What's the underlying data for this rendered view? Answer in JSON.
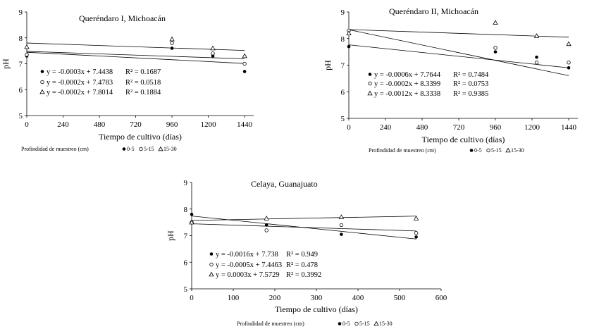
{
  "chart_data": [
    {
      "type": "scatter",
      "title": "Queréndaro I, Michoacán",
      "xlabel": "Tiempo de cultivo (días)",
      "ylabel": "pH",
      "xlim": [
        0,
        1500
      ],
      "ylim": [
        5,
        9
      ],
      "xticks": [
        0,
        240,
        480,
        720,
        960,
        1200,
        1440
      ],
      "yticks": [
        5,
        6,
        7,
        8,
        9
      ],
      "legend_title": "Profindidad de muestreo (cm)",
      "series": [
        {
          "name": "0-5",
          "marker": "filled-circle",
          "x": [
            0,
            960,
            1230,
            1440
          ],
          "y": [
            7.3,
            7.6,
            7.3,
            6.7
          ],
          "fit": {
            "slope": -0.0003,
            "intercept": 7.4438
          },
          "equation": "y = -0.0003x + 7.4438",
          "r2": "R² = 0.1687"
        },
        {
          "name": "5-15",
          "marker": "open-circle",
          "x": [
            0,
            960,
            1230,
            1440
          ],
          "y": [
            7.35,
            7.8,
            7.4,
            7.0
          ],
          "fit": {
            "slope": -0.0002,
            "intercept": 7.4783
          },
          "equation": "y = -0.0002x + 7.4783",
          "r2": "R² = 0.0518"
        },
        {
          "name": "15-30",
          "marker": "open-triangle",
          "x": [
            0,
            960,
            1230,
            1440
          ],
          "y": [
            7.65,
            7.95,
            7.6,
            7.3
          ],
          "fit": {
            "slope": -0.0002,
            "intercept": 7.8014
          },
          "equation": "y = -0.0002x + 7.8014",
          "r2": "R² = 0.1884"
        }
      ]
    },
    {
      "type": "scatter",
      "title": "Queréndaro II, Michoacán",
      "xlabel": "Tiempo de cultivo (días)",
      "ylabel": "pH",
      "xlim": [
        0,
        1500
      ],
      "ylim": [
        5,
        9
      ],
      "xticks": [
        0,
        240,
        480,
        720,
        960,
        1200,
        1440
      ],
      "yticks": [
        5,
        6,
        7,
        8,
        9
      ],
      "legend_title": "Profindidad de muestreo (cm)",
      "series": [
        {
          "name": "0-5",
          "marker": "filled-circle",
          "x": [
            0,
            960,
            1230,
            1440
          ],
          "y": [
            7.7,
            7.5,
            7.3,
            6.9
          ],
          "fit": {
            "slope": -0.0006,
            "intercept": 7.7644
          },
          "equation": "y = -0.0006x + 7.7644",
          "r2": "R² = 0.7484"
        },
        {
          "name": "5-15",
          "marker": "open-circle",
          "x": [
            0,
            960,
            1230,
            1440
          ],
          "y": [
            8.3,
            7.65,
            7.1,
            7.1
          ],
          "fit": {
            "slope": -0.0002,
            "intercept": 8.3399
          },
          "equation": "y = -0.0002x + 8.3399",
          "r2": "R² = 0.0753"
        },
        {
          "name": "15-30",
          "marker": "open-triangle",
          "x": [
            0,
            960,
            1230,
            1440
          ],
          "y": [
            8.2,
            8.6,
            8.1,
            7.8
          ],
          "fit": {
            "slope": -0.0012,
            "intercept": 8.3338
          },
          "equation": "y = -0.0012x + 8.3338",
          "r2": "R² = 0.9385"
        }
      ]
    },
    {
      "type": "scatter",
      "title": "Celaya, Guanajuato",
      "xlabel": "Tiempo de cultivo (días)",
      "ylabel": "pH",
      "xlim": [
        0,
        600
      ],
      "ylim": [
        5,
        9
      ],
      "xticks": [
        0,
        100,
        200,
        300,
        400,
        500,
        600
      ],
      "yticks": [
        5,
        6,
        7,
        8,
        9
      ],
      "legend_title": "Profindidad de muestreo (cm)",
      "series": [
        {
          "name": "0-5",
          "marker": "filled-circle",
          "x": [
            0,
            180,
            360,
            540
          ],
          "y": [
            7.8,
            7.4,
            7.05,
            6.95
          ],
          "fit": {
            "slope": -0.0016,
            "intercept": 7.738
          },
          "equation": "y = -0.0016x + 7.738",
          "r2": "R² = 0.949"
        },
        {
          "name": "5-15",
          "marker": "open-circle",
          "x": [
            0,
            180,
            360,
            540
          ],
          "y": [
            7.5,
            7.2,
            7.4,
            7.1
          ],
          "fit": {
            "slope": -0.0005,
            "intercept": 7.4463
          },
          "equation": "y = -0.0005x + 7.4463",
          "r2": "R² = 0.478"
        },
        {
          "name": "15-30",
          "marker": "open-triangle",
          "x": [
            0,
            180,
            360,
            540
          ],
          "y": [
            7.5,
            7.65,
            7.7,
            7.65
          ],
          "fit": {
            "slope": 0.0003,
            "intercept": 7.5729
          },
          "equation": "y = 0.0003x + 7.5729",
          "r2": "R² = 0.3992"
        }
      ]
    }
  ]
}
